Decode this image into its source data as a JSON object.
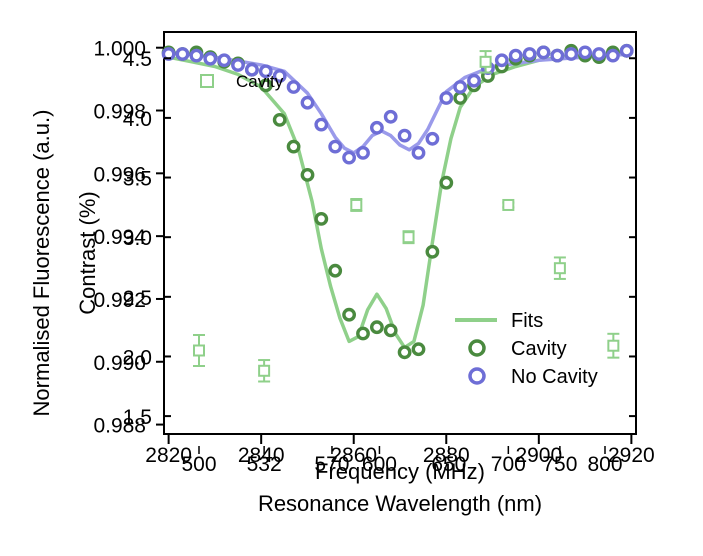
{
  "chart_data": [
    {
      "type": "scatter",
      "title": "",
      "xlabel": "Frequency (MHz)",
      "ylabel": "Normalised Fluorescence (a.u.)",
      "xlim": [
        2819,
        2921
      ],
      "ylim": [
        0.9877,
        1.0005
      ],
      "x_ticks": [
        2820,
        2840,
        2860,
        2880,
        2900,
        2920
      ],
      "y_ticks": [
        "1.000",
        "0.998",
        "0.996",
        "0.994",
        "0.992",
        "0.990",
        "0.988"
      ],
      "legend": {
        "position": "bottom-right",
        "entries": [
          "Fits",
          "Cavity",
          "No Cavity"
        ]
      },
      "colors": {
        "cavity_points": "#4a8a3f",
        "cavity_fit": "#8fd08a",
        "no_cavity": "#6e6ed6"
      },
      "series": [
        {
          "name": "Cavity",
          "kind": "points",
          "x": [
            2820,
            2823,
            2826,
            2829,
            2832,
            2835,
            2838,
            2841,
            2844,
            2847,
            2850,
            2853,
            2856,
            2859,
            2862,
            2865,
            2868,
            2871,
            2874,
            2877,
            2880,
            2883,
            2886,
            2889,
            2892,
            2895,
            2898,
            2901,
            2904,
            2907,
            2910,
            2913,
            2916,
            2919
          ],
          "y": [
            0.99985,
            0.9998,
            0.99985,
            0.9997,
            0.99955,
            0.9995,
            0.9993,
            0.9988,
            0.9977,
            0.99685,
            0.99595,
            0.99455,
            0.9929,
            0.9915,
            0.9909,
            0.9911,
            0.991,
            0.9903,
            0.9904,
            0.9935,
            0.9957,
            0.9984,
            0.9988,
            0.9991,
            0.9994,
            0.99965,
            0.99975,
            0.99985,
            0.99975,
            0.9999,
            0.99975,
            0.9997,
            0.99985,
            0.9999
          ]
        },
        {
          "name": "No Cavity",
          "kind": "points",
          "x": [
            2820,
            2823,
            2826,
            2829,
            2832,
            2835,
            2838,
            2841,
            2844,
            2847,
            2850,
            2853,
            2856,
            2859,
            2862,
            2865,
            2868,
            2871,
            2874,
            2877,
            2880,
            2883,
            2886,
            2889,
            2892,
            2895,
            2898,
            2901,
            2904,
            2907,
            2910,
            2913,
            2916,
            2919
          ],
          "y": [
            0.9998,
            0.9998,
            0.99975,
            0.99965,
            0.9996,
            0.99945,
            0.9993,
            0.99925,
            0.9991,
            0.99875,
            0.99825,
            0.99755,
            0.99685,
            0.9965,
            0.99665,
            0.99745,
            0.9978,
            0.9972,
            0.99665,
            0.9971,
            0.9984,
            0.99875,
            0.99895,
            0.99935,
            0.9996,
            0.99975,
            0.9998,
            0.99985,
            0.99975,
            0.9998,
            0.99985,
            0.9998,
            0.99975,
            0.9999
          ]
        },
        {
          "name": "Fits",
          "kind": "line",
          "x": [
            2820,
            2825,
            2830,
            2835,
            2840,
            2845,
            2848,
            2851,
            2853,
            2855,
            2857,
            2859,
            2861,
            2863,
            2865,
            2867,
            2869,
            2871,
            2873,
            2875,
            2877,
            2879,
            2881,
            2883,
            2886,
            2890,
            2895,
            2900,
            2905,
            2910,
            2915,
            2920
          ],
          "y": [
            0.9997,
            0.99955,
            0.9994,
            0.99915,
            0.99875,
            0.9979,
            0.9968,
            0.9951,
            0.9936,
            0.9924,
            0.9914,
            0.99065,
            0.9908,
            0.99165,
            0.99215,
            0.9917,
            0.9909,
            0.99045,
            0.99065,
            0.9918,
            0.9938,
            0.9957,
            0.9971,
            0.9981,
            0.99875,
            0.99915,
            0.9994,
            0.9996,
            0.9997,
            0.99975,
            0.9998,
            0.99985
          ]
        },
        {
          "name": "No Cavity fit",
          "kind": "line",
          "x": [
            2820,
            2830,
            2840,
            2845,
            2850,
            2853,
            2856,
            2858,
            2860,
            2862,
            2864,
            2866,
            2868,
            2870,
            2872,
            2874,
            2876,
            2878,
            2880,
            2884,
            2890,
            2900,
            2910,
            2920
          ],
          "y": [
            0.99985,
            0.9997,
            0.99945,
            0.99925,
            0.99855,
            0.9979,
            0.99715,
            0.9968,
            0.99665,
            0.99685,
            0.9972,
            0.99735,
            0.9972,
            0.9969,
            0.99675,
            0.99695,
            0.9974,
            0.998,
            0.9986,
            0.99905,
            0.9994,
            0.9996,
            0.9997,
            0.9998
          ]
        }
      ]
    },
    {
      "type": "scatter",
      "title": "",
      "xlabel": "Resonance Wavelength (nm)",
      "ylabel": "Contrast (%)",
      "ylim": [
        1.35,
        4.72
      ],
      "x_ticks": [
        "500",
        "532",
        "570",
        "600",
        "650",
        "700",
        "750",
        "800"
      ],
      "y_ticks": [
        "4.5",
        "4.0",
        "3.5",
        "3.0",
        "2.5",
        "2.0",
        "1.5"
      ],
      "legend": {
        "position": "top-left",
        "entries": [
          "Cavity"
        ]
      },
      "series": [
        {
          "name": "Cavity",
          "kind": "points_with_error",
          "x": [
            500,
            532,
            585,
            620,
            680,
            700,
            750,
            810
          ],
          "y": [
            2.05,
            1.88,
            3.27,
            3.0,
            4.47,
            3.27,
            2.74,
            2.09
          ],
          "err": [
            0.13,
            0.09,
            0.05,
            0.05,
            0.09,
            0.02,
            0.09,
            0.1
          ]
        }
      ]
    }
  ]
}
